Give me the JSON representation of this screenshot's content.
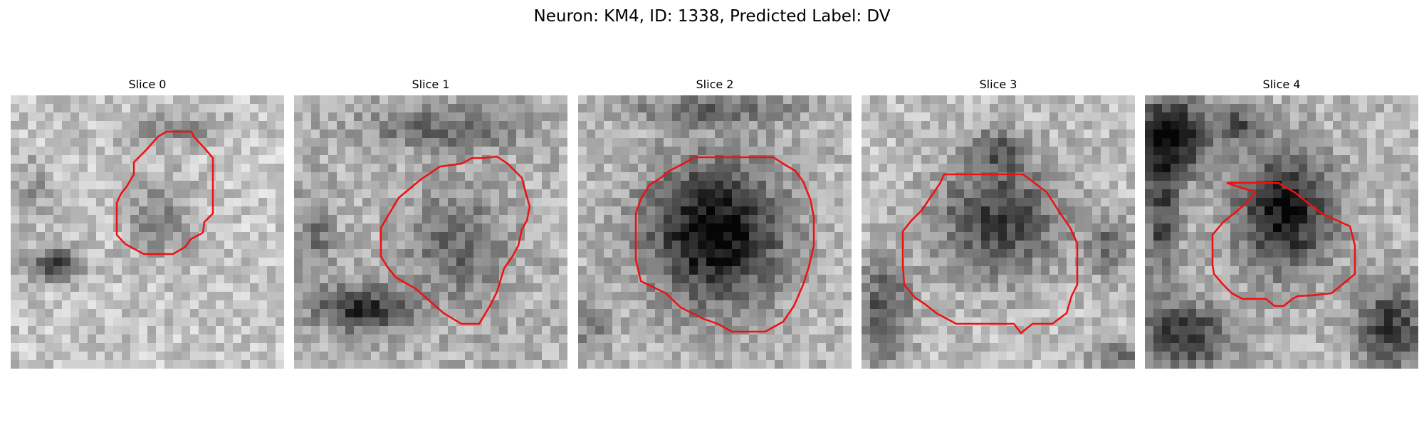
{
  "figure": {
    "title": "Neuron: KM4, ID: 1338, Predicted Label: DV"
  },
  "slices": [
    {
      "title": "Slice 0"
    },
    {
      "title": "Slice 1"
    },
    {
      "title": "Slice 2"
    },
    {
      "title": "Slice 3"
    },
    {
      "title": "Slice 4"
    }
  ],
  "colors": {
    "contour": "#ee1111",
    "background": "#ffffff"
  }
}
